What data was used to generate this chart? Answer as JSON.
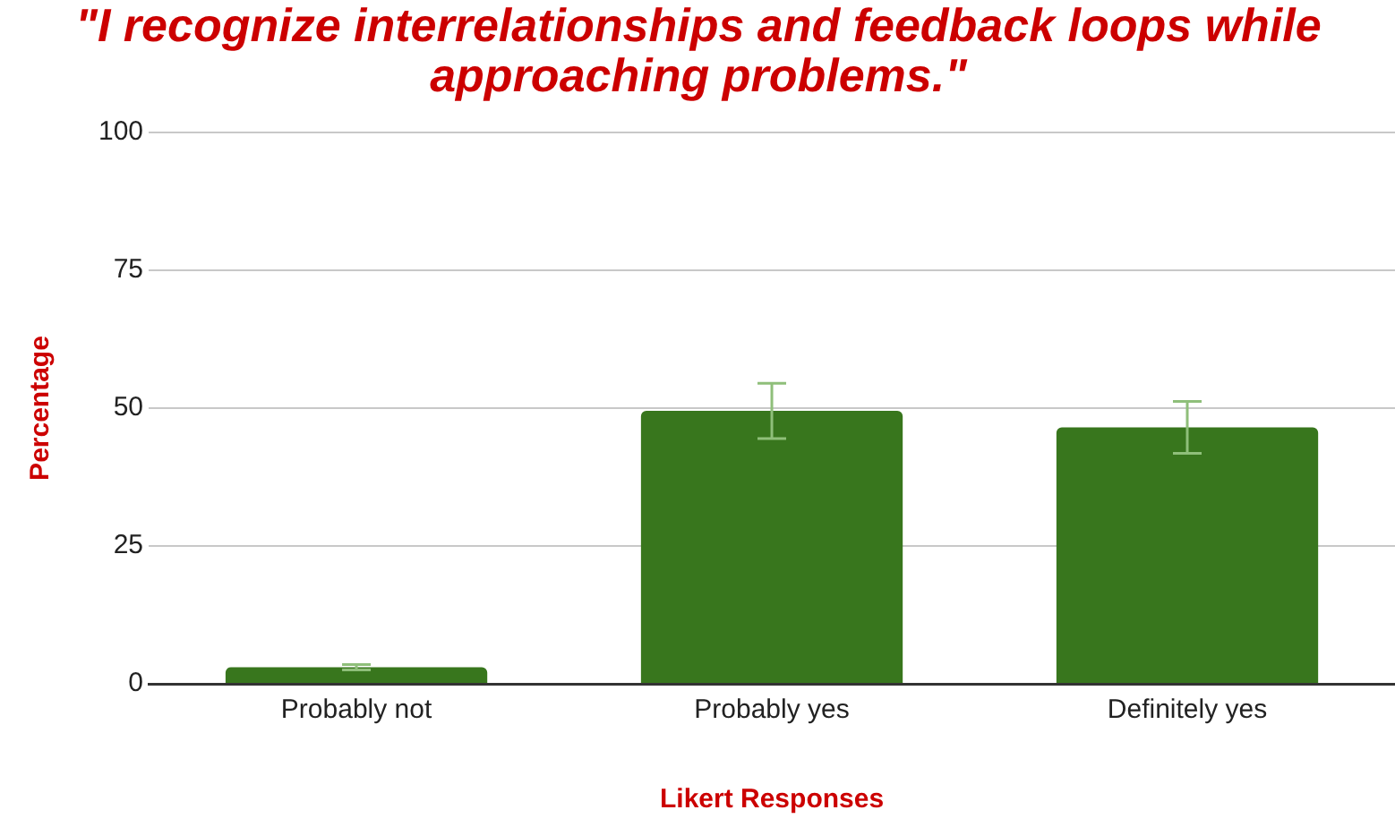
{
  "chart_data": {
    "type": "bar",
    "title": "\"I recognize interrelationships and feedback loops while approaching problems.\"",
    "xlabel": "Likert Responses",
    "ylabel": "Percentage",
    "categories": [
      "Probably not",
      "Probably yes",
      "Definitely yes"
    ],
    "values": [
      3,
      49.5,
      46.5
    ],
    "errors": [
      0.5,
      5,
      4.7
    ],
    "color": "#38761d",
    "ylim": [
      0,
      100
    ],
    "yticks": [
      0,
      25,
      50,
      75,
      100
    ],
    "grid": "y",
    "legend": false
  }
}
